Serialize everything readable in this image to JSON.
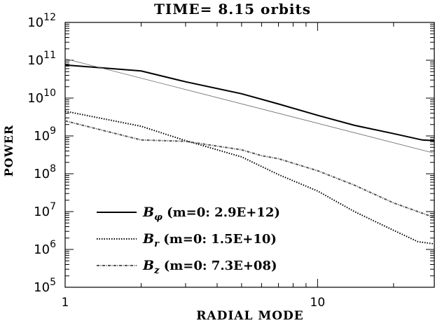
{
  "chart_data": {
    "type": "line",
    "title": "TIME= 8.15 orbits",
    "xlabel": "RADIAL MODE",
    "ylabel": "POWER",
    "x_scale": "log",
    "y_scale": "log",
    "xlim": [
      1,
      29
    ],
    "ylim": [
      100000,
      1000000000000
    ],
    "x_major_ticks": [
      {
        "value": 1,
        "label": "1"
      },
      {
        "value": 10,
        "label": "10"
      }
    ],
    "y_major_ticks": [
      {
        "value": 100000,
        "base": "10",
        "exp": "5"
      },
      {
        "value": 1000000,
        "base": "10",
        "exp": "6"
      },
      {
        "value": 10000000,
        "base": "10",
        "exp": "7"
      },
      {
        "value": 100000000,
        "base": "10",
        "exp": "8"
      },
      {
        "value": 1000000000,
        "base": "10",
        "exp": "9"
      },
      {
        "value": 10000000000,
        "base": "10",
        "exp": "10"
      },
      {
        "value": 100000000000,
        "base": "10",
        "exp": "11"
      },
      {
        "value": 1000000000000,
        "base": "10",
        "exp": "12"
      }
    ],
    "grid": false,
    "legend_position": "bottom-left",
    "series": [
      {
        "symbol": "B",
        "subscript": "φ",
        "legend_text": " (m=0: 2.9E+12)",
        "style": "solid",
        "color": "#000000",
        "points": [
          [
            1,
            75000000000.0
          ],
          [
            2,
            52000000000.0
          ],
          [
            3,
            27000000000.0
          ],
          [
            5,
            13000000000.0
          ],
          [
            7,
            7000000000.0
          ],
          [
            10,
            3500000000.0
          ],
          [
            14,
            1900000000.0
          ],
          [
            20,
            1150000000.0
          ],
          [
            26,
            780000000.0
          ],
          [
            29,
            750000000.0
          ]
        ]
      },
      {
        "symbol": "B",
        "subscript": "r",
        "legend_text": " (m=0: 1.5E+10)",
        "style": "dotted",
        "color": "#000000",
        "points": [
          [
            1,
            4500000000.0
          ],
          [
            2,
            1800000000.0
          ],
          [
            3,
            750000000.0
          ],
          [
            5,
            280000000.0
          ],
          [
            7,
            95000000.0
          ],
          [
            10,
            35000000.0
          ],
          [
            14,
            10000000.0
          ],
          [
            20,
            3200000.0
          ],
          [
            25,
            1600000.0
          ],
          [
            29,
            1400000.0
          ]
        ]
      },
      {
        "symbol": "B",
        "subscript": "z",
        "legend_text": " (m=0: 7.3E+08)",
        "style": "dash-dot",
        "color": "#555555",
        "points": [
          [
            1,
            2500000000.0
          ],
          [
            2,
            780000000.0
          ],
          [
            3,
            720000000.0
          ],
          [
            5,
            430000000.0
          ],
          [
            6,
            300000000.0
          ],
          [
            7,
            250000000.0
          ],
          [
            10,
            120000000.0
          ],
          [
            14,
            50000000.0
          ],
          [
            20,
            17000000.0
          ],
          [
            29,
            7000000.0
          ]
        ]
      },
      {
        "symbol": "",
        "subscript": "",
        "legend_text": "",
        "style": "solid-thin",
        "color": "#666666",
        "points": [
          [
            1,
            110000000000.0
          ],
          [
            29,
            350000000.0
          ]
        ]
      }
    ]
  }
}
